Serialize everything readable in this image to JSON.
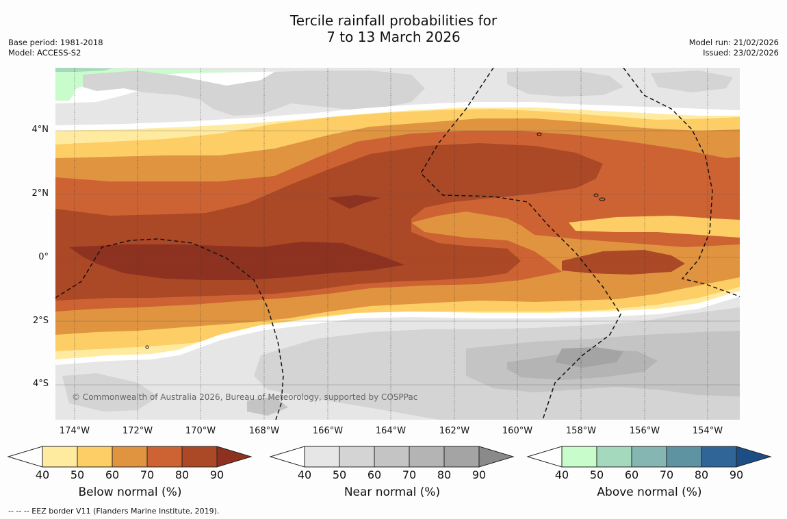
{
  "title": {
    "line1": "Tercile rainfall probabilities for",
    "line2": "7 to 13 March 2026"
  },
  "meta_left": {
    "base_period": "Base period: 1981-2018",
    "model": "Model: ACCESS-S2"
  },
  "meta_right": {
    "model_run": "Model run: 21/02/2026",
    "issued": "Issued: 23/02/2026"
  },
  "map": {
    "copyright": "© Commonwealth of Australia 2026, Bureau of Meteorology, supported by COSPPac",
    "lat_labels": [
      "4°N",
      "2°N",
      "0°",
      "2°S",
      "4°S"
    ],
    "lon_labels": [
      "174°W",
      "172°W",
      "170°W",
      "168°W",
      "166°W",
      "164°W",
      "162°W",
      "160°W",
      "158°W",
      "156°W",
      "154°W"
    ]
  },
  "legends": [
    {
      "title": "Below normal (%)",
      "ticks": [
        "40",
        "50",
        "60",
        "70",
        "80",
        "90"
      ],
      "colors": [
        "#ffeba0",
        "#fdcd66",
        "#e09440",
        "#cd6333",
        "#ab4826",
        "#8d3220"
      ]
    },
    {
      "title": "Near normal (%)",
      "ticks": [
        "40",
        "50",
        "60",
        "70",
        "80",
        "90"
      ],
      "colors": [
        "#e6e6e6",
        "#d4d4d4",
        "#c4c4c4",
        "#b4b4b4",
        "#a4a4a4",
        "#8a8a8a"
      ]
    },
    {
      "title": "Above normal (%)",
      "ticks": [
        "40",
        "50",
        "60",
        "70",
        "80",
        "90"
      ],
      "colors": [
        "#c8fcca",
        "#a5d9bd",
        "#85b6b1",
        "#5e93a2",
        "#306598",
        "#1c4e85"
      ]
    }
  ],
  "footnote": "--  --  -- EEZ border V11 (Flanders Marine Institute, 2019)."
}
